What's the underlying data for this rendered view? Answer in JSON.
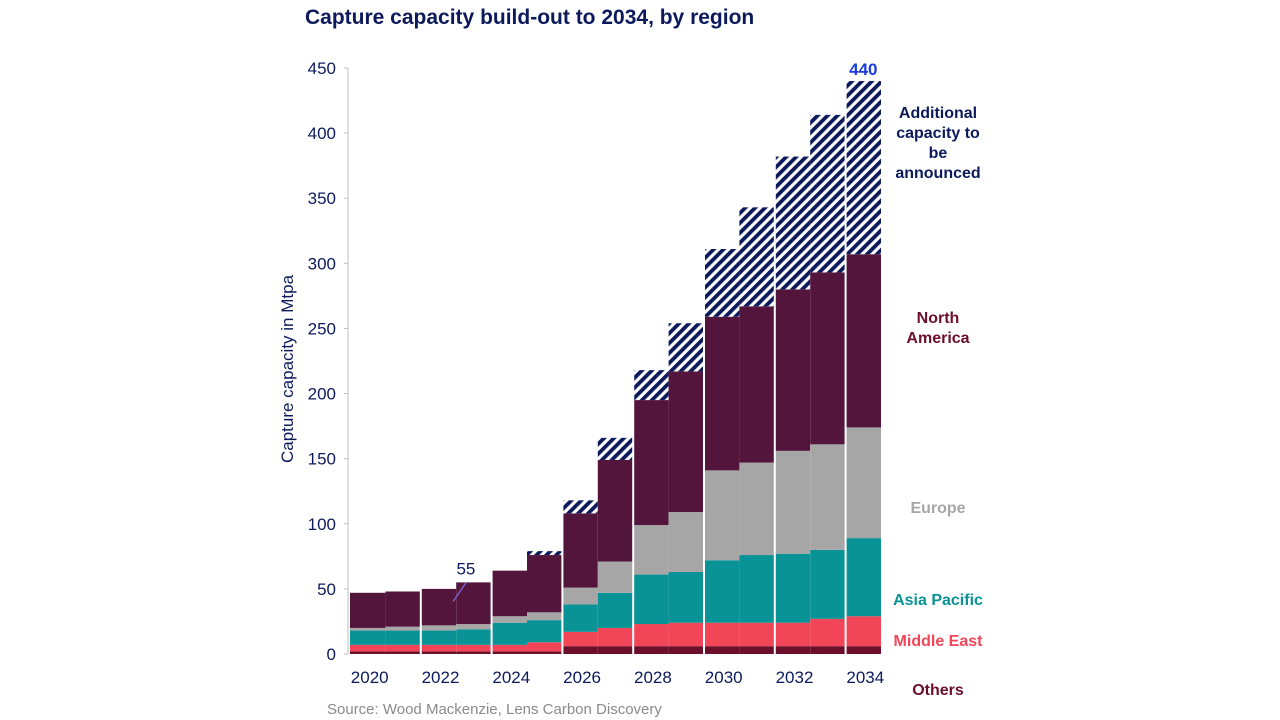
{
  "chart_data": {
    "type": "bar",
    "stacked": true,
    "title": "Capture capacity build-out to 2034, by region",
    "ylabel": "Capture capacity in Mtpa",
    "xlabel": "",
    "ylim": [
      0,
      450
    ],
    "yticks": [
      0,
      50,
      100,
      150,
      200,
      250,
      300,
      350,
      400,
      450
    ],
    "categories": [
      2020,
      2021,
      2022,
      2023,
      2024,
      2025,
      2026,
      2027,
      2028,
      2029,
      2030,
      2031,
      2032,
      2033,
      2034
    ],
    "xtick_labels": [
      "2020",
      "2022",
      "2024",
      "2026",
      "2028",
      "2030",
      "2032",
      "2034"
    ],
    "series": [
      {
        "name": "Others",
        "color": "#6b0f2a",
        "values": [
          2,
          2,
          2,
          2,
          2,
          2,
          6,
          6,
          6,
          6,
          6,
          6,
          6,
          6,
          6
        ]
      },
      {
        "name": "Middle East",
        "color": "#f24557",
        "values": [
          5,
          5,
          5,
          5,
          5,
          7,
          11,
          14,
          17,
          18,
          18,
          18,
          18,
          21,
          23
        ]
      },
      {
        "name": "Asia Pacific",
        "color": "#0a9396",
        "values": [
          11,
          11,
          11,
          12,
          17,
          17,
          21,
          27,
          38,
          39,
          48,
          52,
          53,
          53,
          60
        ]
      },
      {
        "name": "Europe",
        "color": "#a6a6a6",
        "values": [
          2,
          3,
          4,
          4,
          5,
          6,
          13,
          24,
          38,
          46,
          69,
          71,
          79,
          81,
          85
        ]
      },
      {
        "name": "North America",
        "color": "#54153d",
        "values": [
          27,
          27,
          28,
          32,
          35,
          44,
          57,
          78,
          96,
          108,
          118,
          120,
          124,
          132,
          133
        ]
      },
      {
        "name": "Additional capacity to be announced",
        "color": "#0c1a5c",
        "pattern": "hatch",
        "values": [
          0,
          0,
          0,
          0,
          0,
          3,
          10,
          17,
          23,
          37,
          52,
          76,
          102,
          121,
          133
        ]
      }
    ],
    "annotations": [
      {
        "text": "55",
        "category": 2023
      },
      {
        "text": "440",
        "category": 2034
      }
    ],
    "legend_placement": "right, inline labels",
    "grid": false
  },
  "source": "Source: Wood Mackenzie,  Lens Carbon Discovery"
}
